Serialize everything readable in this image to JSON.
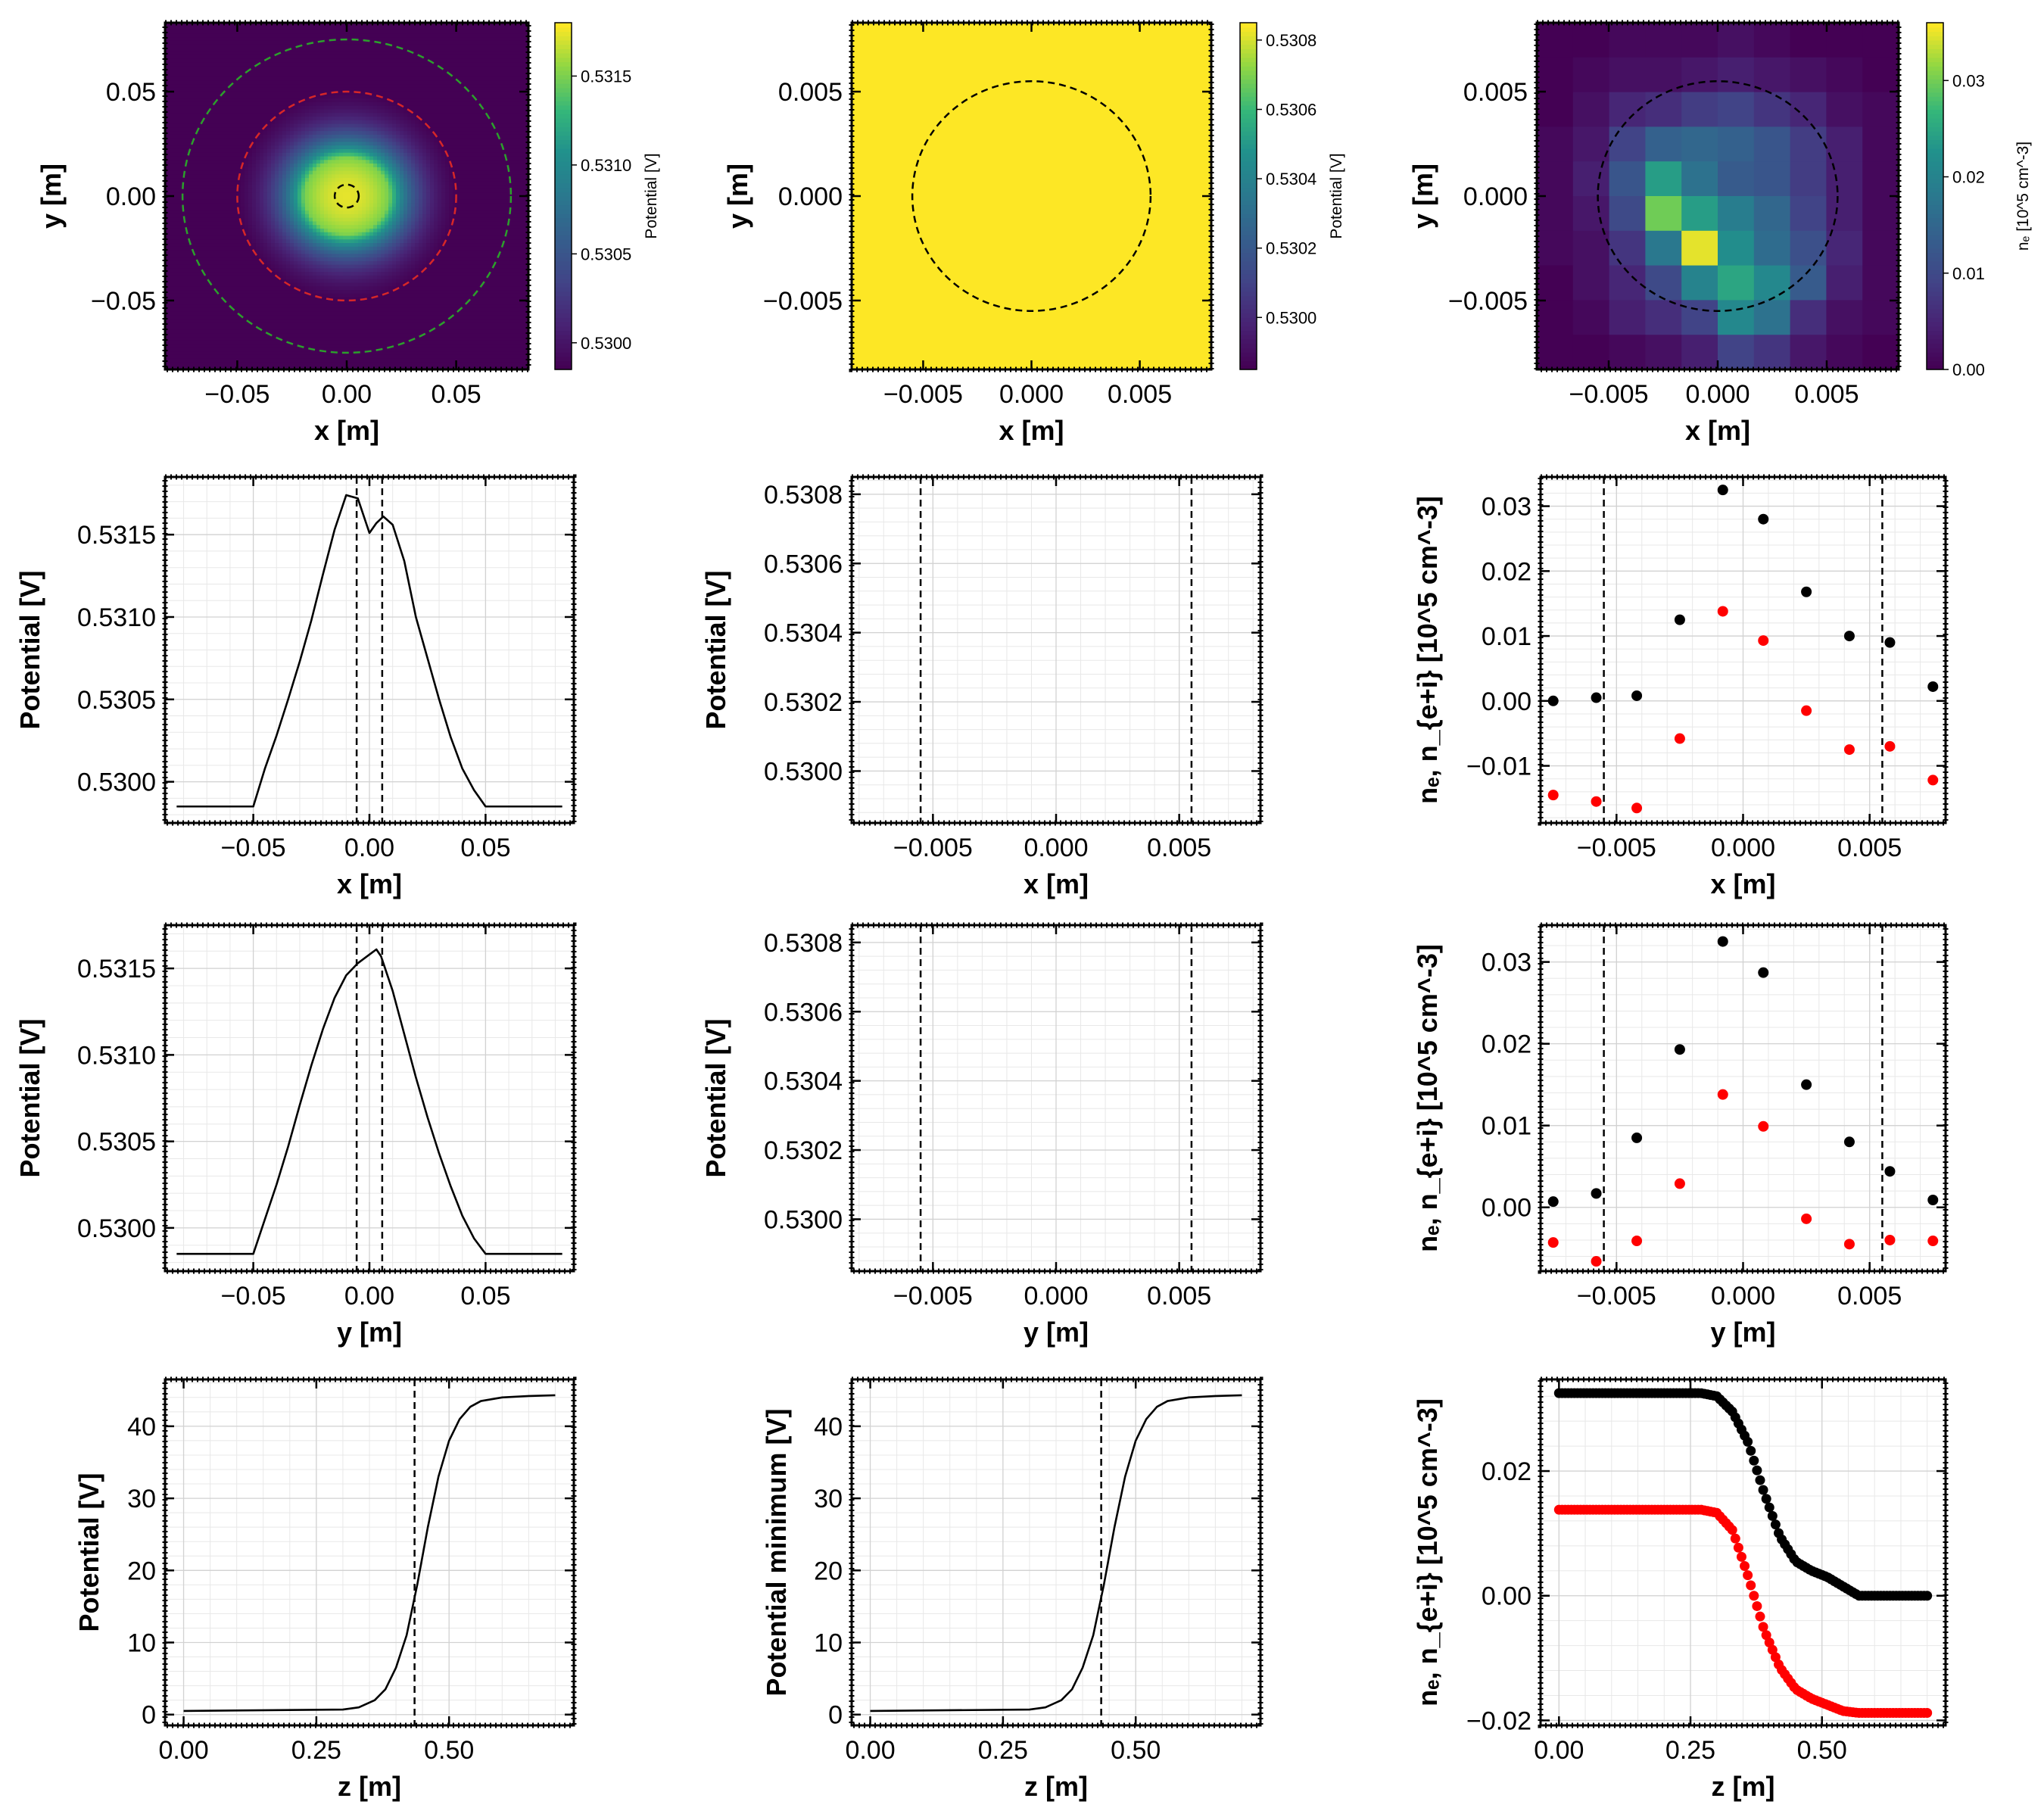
{
  "chart_data": [
    {
      "id": "r0c0",
      "type": "heatmap",
      "xlabel": "x [m]",
      "ylabel": "y [m]",
      "xlim": [
        -0.083,
        0.083
      ],
      "ylim": [
        -0.083,
        0.083
      ],
      "xticks": [
        -0.05,
        0.0,
        0.05
      ],
      "xtick_labels": [
        "−0.05",
        "0.00",
        "0.05"
      ],
      "yticks": [
        -0.05,
        0.0,
        0.05
      ],
      "ytick_labels": [
        "−0.05",
        "0.00",
        "0.05"
      ],
      "field": {
        "min": 0.52985,
        "peak": 0.53175,
        "plateau_radius": 0.05,
        "peak_offset": 0.007
      },
      "colorbar": {
        "label": "Potential [V]",
        "range": [
          0.52985,
          0.5318
        ],
        "ticks": [
          0.53,
          0.5305,
          0.531,
          0.5315
        ],
        "tick_labels": [
          "0.5300",
          "0.5305",
          "0.5310",
          "0.5315"
        ]
      },
      "circles": [
        {
          "cx": 0,
          "cy": 0,
          "r": 0.075,
          "color": "#2ca02c"
        },
        {
          "cx": 0,
          "cy": 0,
          "r": 0.05,
          "color": "#d62728"
        },
        {
          "cx": 0,
          "cy": 0,
          "r": 0.0055,
          "color": "#000000"
        }
      ]
    },
    {
      "id": "r0c1",
      "type": "heatmap",
      "xlabel": "x [m]",
      "ylabel": "y [m]",
      "xlim": [
        -0.0083,
        0.0083
      ],
      "ylim": [
        -0.0083,
        0.0083
      ],
      "xticks": [
        -0.005,
        0.0,
        0.005
      ],
      "xtick_labels": [
        "−0.005",
        "0.000",
        "0.005"
      ],
      "yticks": [
        -0.005,
        0.0,
        0.005
      ],
      "ytick_labels": [
        "−0.005",
        "0.000",
        "0.005"
      ],
      "fill_color": "#fde725",
      "colorbar": {
        "label": "Potential [V]",
        "range": [
          0.52985,
          0.53085
        ],
        "ticks": [
          0.53,
          0.5302,
          0.5304,
          0.5306,
          0.5308
        ],
        "tick_labels": [
          "0.5300",
          "0.5302",
          "0.5304",
          "0.5306",
          "0.5308"
        ]
      },
      "circles": [
        {
          "cx": 0,
          "cy": 0,
          "r": 0.0055,
          "color": "#000000"
        }
      ]
    },
    {
      "id": "r0c2",
      "type": "heatmap",
      "xlabel": "x [m]",
      "ylabel": "y [m]",
      "xlim": [
        -0.0083,
        0.0083
      ],
      "ylim": [
        -0.0083,
        0.0083
      ],
      "xticks": [
        -0.005,
        0.0,
        0.005
      ],
      "xtick_labels": [
        "−0.005",
        "0.000",
        "0.005"
      ],
      "yticks": [
        -0.005,
        0.0,
        0.005
      ],
      "ytick_labels": [
        "−0.005",
        "0.000",
        "0.005"
      ],
      "grid_values": [
        [
          0.0,
          0.0,
          0.001,
          0.001,
          0.001,
          0.002,
          0.001,
          0.0,
          0.0,
          0.0
        ],
        [
          0.0,
          0.001,
          0.002,
          0.002,
          0.003,
          0.004,
          0.003,
          0.002,
          0.001,
          0.0
        ],
        [
          0.0,
          0.002,
          0.005,
          0.006,
          0.008,
          0.009,
          0.007,
          0.005,
          0.002,
          0.001
        ],
        [
          0.001,
          0.003,
          0.009,
          0.014,
          0.015,
          0.014,
          0.012,
          0.008,
          0.004,
          0.001
        ],
        [
          0.001,
          0.004,
          0.012,
          0.024,
          0.017,
          0.013,
          0.012,
          0.008,
          0.004,
          0.001
        ],
        [
          0.001,
          0.003,
          0.01,
          0.03,
          0.024,
          0.019,
          0.015,
          0.009,
          0.004,
          0.001
        ],
        [
          0.001,
          0.002,
          0.007,
          0.018,
          0.035,
          0.022,
          0.016,
          0.011,
          0.005,
          0.001
        ],
        [
          0.0,
          0.002,
          0.005,
          0.01,
          0.02,
          0.025,
          0.021,
          0.013,
          0.004,
          0.001
        ],
        [
          0.0,
          0.001,
          0.004,
          0.006,
          0.009,
          0.021,
          0.017,
          0.006,
          0.002,
          0.001
        ],
        [
          0.0,
          0.0,
          0.001,
          0.002,
          0.004,
          0.009,
          0.007,
          0.003,
          0.001,
          0.0
        ]
      ],
      "colorbar": {
        "label": "nₑ [10^5 cm^-3]",
        "range": [
          0,
          0.036
        ],
        "ticks": [
          0,
          0.01,
          0.02,
          0.03
        ],
        "tick_labels": [
          "0.00",
          "0.01",
          "0.02",
          "0.03"
        ]
      },
      "circles": [
        {
          "cx": 0,
          "cy": 0,
          "r": 0.0055,
          "color": "#000000"
        }
      ]
    },
    {
      "id": "r1c0",
      "type": "line",
      "xlabel": "x [m]",
      "ylabel": "Potential [V]",
      "xlim": [
        -0.088,
        0.088
      ],
      "ylim": [
        0.52975,
        0.53185
      ],
      "xticks": [
        -0.05,
        0.0,
        0.05
      ],
      "xtick_labels": [
        "−0.05",
        "0.00",
        "0.05"
      ],
      "yticks": [
        0.53,
        0.5305,
        0.531,
        0.5315
      ],
      "ytick_labels": [
        "0.5300",
        "0.5305",
        "0.5310",
        "0.5315"
      ],
      "vlines": [
        -0.0055,
        0.0055
      ],
      "series": [
        {
          "x": [
            -0.083,
            -0.05,
            -0.045,
            -0.04,
            -0.035,
            -0.03,
            -0.025,
            -0.02,
            -0.015,
            -0.01,
            -0.005,
            0.0,
            0.003,
            0.006,
            0.01,
            0.015,
            0.02,
            0.025,
            0.03,
            0.035,
            0.04,
            0.045,
            0.05,
            0.083
          ],
          "y": [
            0.52985,
            0.52985,
            0.53008,
            0.53028,
            0.5305,
            0.53073,
            0.53098,
            0.53126,
            0.53153,
            0.53174,
            0.53172,
            0.53151,
            0.53157,
            0.53161,
            0.53156,
            0.53134,
            0.531,
            0.53075,
            0.5305,
            0.53027,
            0.53008,
            0.52995,
            0.52985,
            0.52985
          ],
          "color": "#000000"
        }
      ]
    },
    {
      "id": "r1c1",
      "type": "line",
      "xlabel": "x [m]",
      "ylabel": "Potential [V]",
      "xlim": [
        -0.0083,
        0.0083
      ],
      "ylim": [
        0.52985,
        0.53085
      ],
      "xticks": [
        -0.005,
        0.0,
        0.005
      ],
      "xtick_labels": [
        "−0.005",
        "0.000",
        "0.005"
      ],
      "yticks": [
        0.53,
        0.5302,
        0.5304,
        0.5306,
        0.5308
      ],
      "ytick_labels": [
        "0.5300",
        "0.5302",
        "0.5304",
        "0.5306",
        "0.5308"
      ],
      "vlines": [
        -0.0055,
        0.0055
      ],
      "series": []
    },
    {
      "id": "r1c2",
      "type": "scatter",
      "xlabel": "x [m]",
      "ylabel": "nₑ, n_{e+i} [10^5 cm^-3]",
      "xlim": [
        -0.008,
        0.008
      ],
      "ylim": [
        -0.0188,
        0.0345
      ],
      "xticks": [
        -0.005,
        0.0,
        0.005
      ],
      "xtick_labels": [
        "−0.005",
        "0.000",
        "0.005"
      ],
      "yticks": [
        -0.01,
        0.0,
        0.01,
        0.02,
        0.03
      ],
      "ytick_labels": [
        "−0.01",
        "0.00",
        "0.01",
        "0.02",
        "0.03"
      ],
      "vlines": [
        -0.0055,
        0.0055
      ],
      "series": [
        {
          "x": [
            -0.0075,
            -0.0058,
            -0.0042,
            -0.0025,
            -0.0008,
            0.0008,
            0.0025,
            0.0042,
            0.0058,
            0.0075
          ],
          "y": [
            0.0,
            0.0005,
            0.0008,
            0.0125,
            0.0325,
            0.028,
            0.0168,
            0.01,
            0.009,
            0.0022
          ],
          "color": "#000000"
        },
        {
          "x": [
            -0.0075,
            -0.0058,
            -0.0042,
            -0.0025,
            -0.0008,
            0.0008,
            0.0025,
            0.0042,
            0.0058,
            0.0075
          ],
          "y": [
            -0.0145,
            -0.0155,
            -0.0165,
            -0.0058,
            0.0138,
            0.0093,
            -0.0015,
            -0.0075,
            -0.007,
            -0.0122
          ],
          "color": "#ff0000"
        }
      ]
    },
    {
      "id": "r2c0",
      "type": "line",
      "xlabel": "y [m]",
      "ylabel": "Potential [V]",
      "xlim": [
        -0.088,
        0.088
      ],
      "ylim": [
        0.52975,
        0.53175
      ],
      "xticks": [
        -0.05,
        0.0,
        0.05
      ],
      "xtick_labels": [
        "−0.05",
        "0.00",
        "0.05"
      ],
      "yticks": [
        0.53,
        0.5305,
        0.531,
        0.5315
      ],
      "ytick_labels": [
        "0.5300",
        "0.5305",
        "0.5310",
        "0.5315"
      ],
      "vlines": [
        -0.0055,
        0.0055
      ],
      "series": [
        {
          "x": [
            -0.083,
            -0.05,
            -0.045,
            -0.04,
            -0.035,
            -0.03,
            -0.025,
            -0.02,
            -0.015,
            -0.01,
            -0.005,
            0.0,
            0.003,
            0.005,
            0.01,
            0.015,
            0.02,
            0.025,
            0.03,
            0.035,
            0.04,
            0.045,
            0.05,
            0.083
          ],
          "y": [
            0.52985,
            0.52985,
            0.53005,
            0.53025,
            0.53047,
            0.53071,
            0.53094,
            0.53115,
            0.53133,
            0.53146,
            0.53153,
            0.53158,
            0.53161,
            0.53157,
            0.53137,
            0.53112,
            0.53087,
            0.53064,
            0.53043,
            0.53024,
            0.53007,
            0.52994,
            0.52985,
            0.52985
          ],
          "color": "#000000"
        }
      ]
    },
    {
      "id": "r2c1",
      "type": "line",
      "xlabel": "y [m]",
      "ylabel": "Potential [V]",
      "xlim": [
        -0.0083,
        0.0083
      ],
      "ylim": [
        0.52985,
        0.53085
      ],
      "xticks": [
        -0.005,
        0.0,
        0.005
      ],
      "xtick_labels": [
        "−0.005",
        "0.000",
        "0.005"
      ],
      "yticks": [
        0.53,
        0.5302,
        0.5304,
        0.5306,
        0.5308
      ],
      "ytick_labels": [
        "0.5300",
        "0.5302",
        "0.5304",
        "0.5306",
        "0.5308"
      ],
      "vlines": [
        -0.0055,
        0.0055
      ],
      "series": []
    },
    {
      "id": "r2c2",
      "type": "scatter",
      "xlabel": "y [m]",
      "ylabel": "nₑ, n_{e+i} [10^5 cm^-3]",
      "xlim": [
        -0.008,
        0.008
      ],
      "ylim": [
        -0.0078,
        0.0345
      ],
      "xticks": [
        -0.005,
        0.0,
        0.005
      ],
      "xtick_labels": [
        "−0.005",
        "0.000",
        "0.005"
      ],
      "yticks": [
        0.0,
        0.01,
        0.02,
        0.03
      ],
      "ytick_labels": [
        "0.00",
        "0.01",
        "0.02",
        "0.03"
      ],
      "vlines": [
        -0.0055,
        0.0055
      ],
      "series": [
        {
          "x": [
            -0.0075,
            -0.0058,
            -0.0042,
            -0.0025,
            -0.0008,
            0.0008,
            0.0025,
            0.0042,
            0.0058,
            0.0075
          ],
          "y": [
            0.0007,
            0.0017,
            0.0085,
            0.0193,
            0.0325,
            0.0287,
            0.015,
            0.008,
            0.0044,
            0.0009
          ],
          "color": "#000000"
        },
        {
          "x": [
            -0.0075,
            -0.0058,
            -0.0042,
            -0.0025,
            -0.0008,
            0.0008,
            0.0025,
            0.0042,
            0.0058,
            0.0075
          ],
          "y": [
            -0.0043,
            -0.0066,
            -0.0041,
            0.0029,
            0.0138,
            0.0099,
            -0.0014,
            -0.0045,
            -0.004,
            -0.0041
          ],
          "color": "#ff0000"
        }
      ]
    },
    {
      "id": "r3c0",
      "type": "line",
      "xlabel": "z [m]",
      "ylabel": "Potential [V]",
      "xlim": [
        -0.035,
        0.735
      ],
      "ylim": [
        -1.5,
        46.5
      ],
      "xticks": [
        0.0,
        0.25,
        0.5
      ],
      "xtick_labels": [
        "0.00",
        "0.25",
        "0.50"
      ],
      "yticks": [
        0,
        10,
        20,
        30,
        40
      ],
      "ytick_labels": [
        "0",
        "10",
        "20",
        "30",
        "40"
      ],
      "vlines": [
        0.435
      ],
      "series": [
        {
          "x": [
            0.0,
            0.3,
            0.33,
            0.36,
            0.38,
            0.4,
            0.42,
            0.44,
            0.46,
            0.48,
            0.5,
            0.52,
            0.54,
            0.56,
            0.6,
            0.65,
            0.7
          ],
          "y": [
            0.5,
            0.7,
            1.0,
            2.0,
            3.5,
            6.5,
            11.0,
            18.0,
            26.0,
            33.0,
            38.0,
            41.0,
            42.7,
            43.5,
            44.0,
            44.2,
            44.3
          ],
          "color": "#000000"
        }
      ]
    },
    {
      "id": "r3c1",
      "type": "line",
      "xlabel": "z [m]",
      "ylabel": "Potential minimum [V]",
      "xlim": [
        -0.035,
        0.735
      ],
      "ylim": [
        -1.5,
        46.5
      ],
      "xticks": [
        0.0,
        0.25,
        0.5
      ],
      "xtick_labels": [
        "0.00",
        "0.25",
        "0.50"
      ],
      "yticks": [
        0,
        10,
        20,
        30,
        40
      ],
      "ytick_labels": [
        "0",
        "10",
        "20",
        "30",
        "40"
      ],
      "vlines": [
        0.435
      ],
      "series": [
        {
          "x": [
            0.0,
            0.3,
            0.33,
            0.36,
            0.38,
            0.4,
            0.42,
            0.44,
            0.46,
            0.48,
            0.5,
            0.52,
            0.54,
            0.56,
            0.6,
            0.65,
            0.7
          ],
          "y": [
            0.5,
            0.7,
            1.0,
            2.0,
            3.5,
            6.5,
            11.0,
            18.0,
            26.0,
            33.0,
            38.0,
            41.0,
            42.7,
            43.5,
            44.0,
            44.2,
            44.3
          ],
          "color": "#000000"
        }
      ]
    },
    {
      "id": "r3c2",
      "type": "scatter",
      "xlabel": "z [m]",
      "ylabel": "nₑ, n_{e+i} [10^5 cm^-3]",
      "xlim": [
        -0.035,
        0.735
      ],
      "ylim": [
        -0.0208,
        0.0347
      ],
      "xticks": [
        0.0,
        0.25,
        0.5
      ],
      "xtick_labels": [
        "0.00",
        "0.25",
        "0.50"
      ],
      "yticks": [
        -0.02,
        0.0,
        0.02
      ],
      "ytick_labels": [
        "−0.02",
        "0.00",
        "0.02"
      ],
      "series": [
        {
          "name_hidden": true,
          "profile_z": [
            0.0,
            0.27,
            0.3,
            0.33,
            0.36,
            0.39,
            0.42,
            0.45,
            0.48,
            0.51,
            0.54,
            0.57,
            0.7
          ],
          "profile_v": [
            0.0325,
            0.0325,
            0.032,
            0.0295,
            0.0245,
            0.0165,
            0.0095,
            0.0055,
            0.004,
            0.003,
            0.0015,
            0.0,
            0.0
          ],
          "n_points": 120,
          "color": "#000000"
        },
        {
          "profile_z": [
            0.0,
            0.27,
            0.3,
            0.33,
            0.36,
            0.39,
            0.42,
            0.45,
            0.48,
            0.51,
            0.54,
            0.57,
            0.7
          ],
          "profile_v": [
            0.0138,
            0.0138,
            0.0133,
            0.0105,
            0.003,
            -0.0055,
            -0.0115,
            -0.015,
            -0.0165,
            -0.0175,
            -0.0185,
            -0.0188,
            -0.0188
          ],
          "n_points": 120,
          "color": "#ff0000"
        }
      ]
    }
  ]
}
